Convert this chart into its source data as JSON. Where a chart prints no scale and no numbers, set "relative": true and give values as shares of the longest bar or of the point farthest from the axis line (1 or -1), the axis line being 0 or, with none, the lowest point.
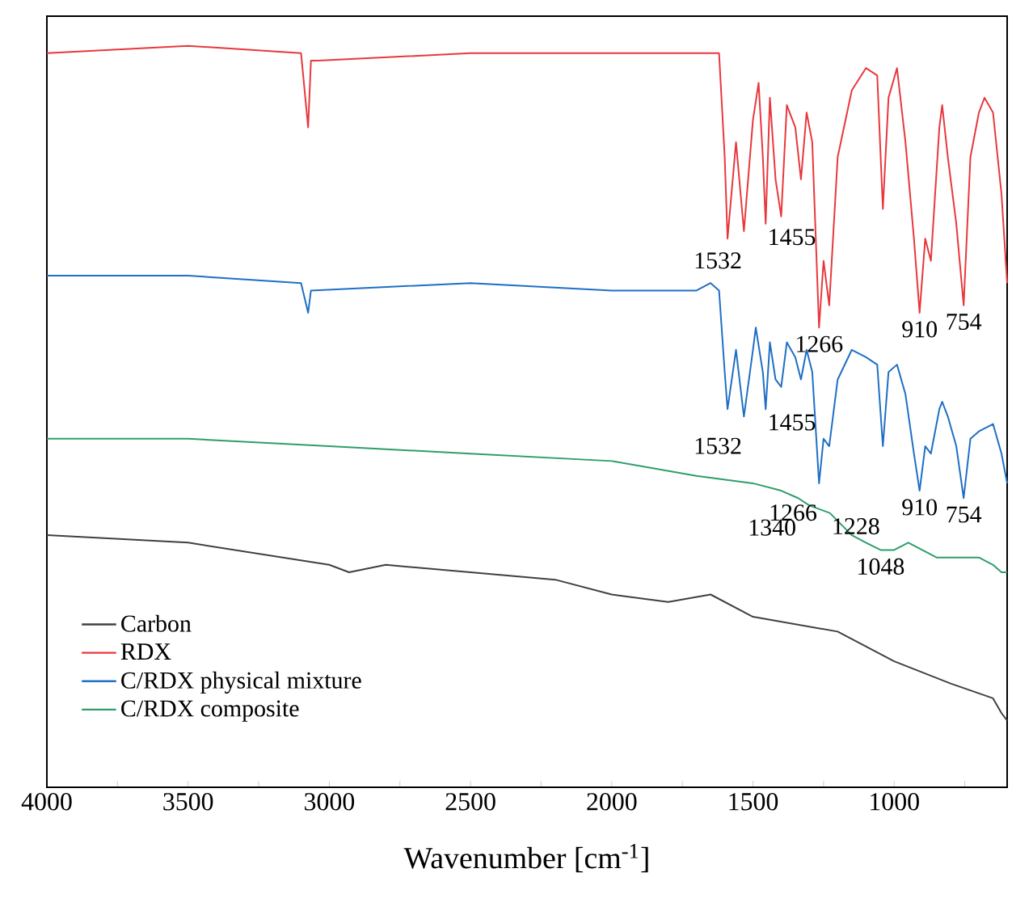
{
  "chart_data": {
    "type": "line",
    "relative": true,
    "xlabel": "Wavenumber [cm$^{-1}$]",
    "xlim": [
      4000,
      600
    ],
    "xticks": [
      4000,
      {
        "value": 3750,
        "label": null
      },
      3500,
      {
        "value": 3250,
        "label": null
      },
      3000,
      {
        "value": 2750,
        "label": null
      },
      2500,
      {
        "value": 2250,
        "label": null
      },
      2000,
      {
        "value": 1750,
        "label": null
      },
      1500,
      {
        "value": 1250,
        "label": null
      },
      1000,
      {
        "value": 750,
        "label": null
      }
    ],
    "legend": "bottom left",
    "grid": false,
    "marker": "none",
    "line_style": "solid",
    "series": [
      {
        "name": "Carbon",
        "color": "#404040",
        "x": [
          4000,
          3500,
          3000,
          2930,
          2800,
          2500,
          2200,
          2000,
          1800,
          1650,
          1500,
          1200,
          1000,
          800,
          650,
          620,
          600
        ],
        "values": [
          0.34,
          0.33,
          0.3,
          0.29,
          0.3,
          0.29,
          0.28,
          0.26,
          0.25,
          0.26,
          0.23,
          0.21,
          0.17,
          0.14,
          0.12,
          0.1,
          0.09
        ]
      },
      {
        "name": "RDX",
        "color": "#e8383d",
        "x": [
          4000,
          3500,
          3100,
          3075,
          3065,
          3040,
          2500,
          2000,
          1650,
          1620,
          1600,
          1590,
          1560,
          1532,
          1500,
          1480,
          1465,
          1455,
          1440,
          1420,
          1400,
          1380,
          1350,
          1330,
          1310,
          1290,
          1266,
          1250,
          1230,
          1200,
          1150,
          1100,
          1060,
          1040,
          1020,
          990,
          960,
          930,
          910,
          890,
          870,
          840,
          830,
          810,
          780,
          754,
          730,
          700,
          680,
          650,
          620,
          600
        ],
        "values": [
          0.99,
          1.0,
          0.99,
          0.89,
          0.98,
          0.98,
          0.99,
          0.99,
          0.99,
          0.99,
          0.85,
          0.74,
          0.87,
          0.75,
          0.9,
          0.95,
          0.85,
          0.76,
          0.93,
          0.82,
          0.77,
          0.92,
          0.89,
          0.82,
          0.91,
          0.87,
          0.62,
          0.71,
          0.65,
          0.85,
          0.94,
          0.97,
          0.96,
          0.78,
          0.93,
          0.97,
          0.87,
          0.74,
          0.64,
          0.74,
          0.71,
          0.89,
          0.92,
          0.85,
          0.76,
          0.65,
          0.85,
          0.91,
          0.93,
          0.91,
          0.8,
          0.68
        ]
      },
      {
        "name": "C/RDX physical mixture",
        "color": "#1f6fc5",
        "x": [
          4000,
          3500,
          3100,
          3075,
          3065,
          2500,
          2000,
          1700,
          1650,
          1620,
          1600,
          1590,
          1560,
          1532,
          1500,
          1490,
          1465,
          1455,
          1440,
          1420,
          1400,
          1380,
          1350,
          1330,
          1310,
          1290,
          1266,
          1250,
          1230,
          1200,
          1150,
          1100,
          1060,
          1040,
          1020,
          990,
          960,
          930,
          910,
          890,
          870,
          840,
          830,
          810,
          780,
          754,
          730,
          700,
          650,
          620,
          600
        ],
        "values": [
          0.69,
          0.69,
          0.68,
          0.64,
          0.67,
          0.68,
          0.67,
          0.67,
          0.68,
          0.67,
          0.56,
          0.51,
          0.59,
          0.5,
          0.59,
          0.62,
          0.56,
          0.51,
          0.6,
          0.55,
          0.54,
          0.6,
          0.58,
          0.55,
          0.59,
          0.56,
          0.41,
          0.47,
          0.46,
          0.55,
          0.59,
          0.58,
          0.57,
          0.46,
          0.56,
          0.57,
          0.53,
          0.45,
          0.4,
          0.46,
          0.45,
          0.51,
          0.52,
          0.5,
          0.46,
          0.39,
          0.47,
          0.48,
          0.49,
          0.45,
          0.41
        ]
      },
      {
        "name": "C/RDX composite",
        "color": "#2e9e6a",
        "x": [
          4000,
          3500,
          3000,
          2500,
          2000,
          1700,
          1500,
          1400,
          1340,
          1300,
          1228,
          1150,
          1100,
          1048,
          1000,
          950,
          850,
          750,
          700,
          650,
          620,
          600
        ],
        "values": [
          0.47,
          0.47,
          0.46,
          0.45,
          0.44,
          0.42,
          0.41,
          0.4,
          0.39,
          0.38,
          0.37,
          0.34,
          0.33,
          0.32,
          0.32,
          0.33,
          0.31,
          0.31,
          0.31,
          0.3,
          0.29,
          0.29
        ]
      }
    ],
    "annotations": [
      {
        "text": "1532",
        "x": 1532,
        "y": 0.75
      },
      {
        "text": "1455",
        "x": 1455,
        "y": 0.76
      },
      {
        "text": "1266",
        "x": 1266,
        "y": 0.62
      },
      {
        "text": "910",
        "x": 910,
        "y": 0.64
      },
      {
        "text": "754",
        "x": 754,
        "y": 0.65
      },
      {
        "text": "1532",
        "x": 1532,
        "y": 0.5
      },
      {
        "text": "1455",
        "x": 1455,
        "y": 0.51
      },
      {
        "text": "1266",
        "x": 1266,
        "y": 0.41
      },
      {
        "text": "910",
        "x": 910,
        "y": 0.4
      },
      {
        "text": "754",
        "x": 754,
        "y": 0.39
      },
      {
        "text": "1340",
        "x": 1340,
        "y": 0.39
      },
      {
        "text": "1228",
        "x": 1228,
        "y": 0.37
      },
      {
        "text": "1048",
        "x": 1048,
        "y": 0.32
      }
    ]
  }
}
